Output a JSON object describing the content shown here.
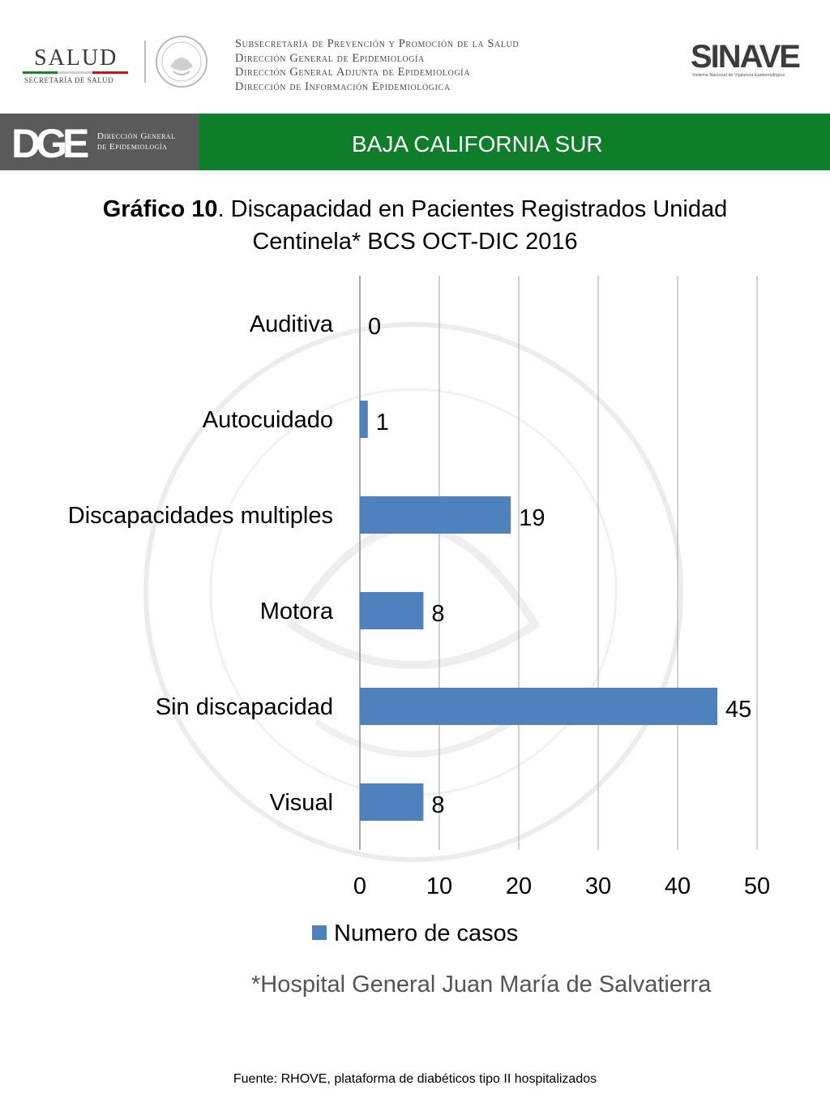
{
  "header": {
    "salud_logo_text": "SALUD",
    "salud_logo_subtext": "SECRETARÍA DE SALUD",
    "institutions": [
      "Subsecretaría de Prevención y Promoción de la Salud",
      "Dirección General de Epidemiología",
      "Dirección General Adjunta de Epidemiología",
      "Dirección de Información Epidemiológica"
    ],
    "sinave_logo_text": "SINAVE",
    "sinave_subtext": "Sistema Nacional de Vigilancia Epidemiológica"
  },
  "banner": {
    "dge_letters": "DGE",
    "dge_name_line1": "Dirección General",
    "dge_name_line2": "de Epidemiología",
    "state": "BAJA CALIFORNIA SUR",
    "colors": {
      "dge_bg": "#5a5a5a",
      "state_bg": "#0f7e2a"
    }
  },
  "title": {
    "bold": "Gráfico 10",
    "rest_line1": ". Discapacidad en Pacientes Registrados  Unidad",
    "line2": "Centinela* BCS OCT-DIC 2016"
  },
  "chart_data": {
    "type": "bar",
    "orientation": "horizontal",
    "categories": [
      "Auditiva",
      "Autocuidado",
      "Discapacidades multiples",
      "Motora",
      "Sin discapacidad",
      "Visual"
    ],
    "series": [
      {
        "name": "Numero de casos",
        "values": [
          0,
          1,
          19,
          8,
          45,
          8
        ],
        "color": "#4f81bd"
      }
    ],
    "xlim": [
      0,
      50
    ],
    "xticks": [
      0,
      10,
      20,
      30,
      40,
      50
    ],
    "grid": true,
    "legend_position": "bottom",
    "data_labels": true
  },
  "note": "*Hospital General Juan María de Salvatierra",
  "source": "Fuente: RHOVE, plataforma de diabéticos tipo II hospitalizados"
}
